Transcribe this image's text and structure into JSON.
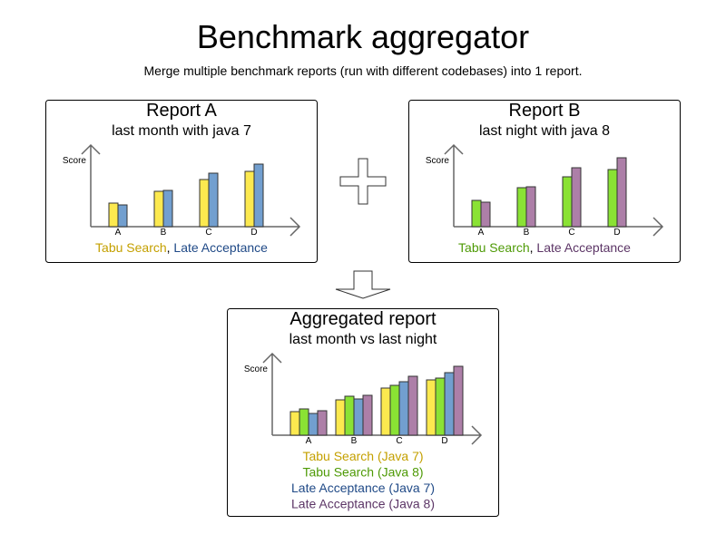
{
  "title": "Benchmark aggregator",
  "subtitle": "Merge multiple benchmark reports (run with different codebases) into 1 report.",
  "colors": {
    "tabu7": {
      "fill": "#fce94f",
      "text": "#c4a000"
    },
    "late7": {
      "fill": "#729fcf",
      "text": "#204a87"
    },
    "tabu8": {
      "fill": "#8ae234",
      "text": "#4e9a06"
    },
    "late8": {
      "fill": "#ad7fa8",
      "text": "#5c3566"
    }
  },
  "reports": {
    "a": {
      "title": "Report A",
      "subtitle": "last month with java 7",
      "ylabel": "Score",
      "categories": [
        "A",
        "B",
        "C",
        "D"
      ],
      "series": [
        {
          "key": "tabu7",
          "values": [
            26,
            39,
            52,
            61
          ]
        },
        {
          "key": "late7",
          "values": [
            24,
            40,
            59,
            69
          ]
        }
      ],
      "legend": [
        {
          "text": "Tabu Search",
          "key": "tabu7"
        },
        {
          "text": ", ",
          "key": null
        },
        {
          "text": "Late Acceptance",
          "key": "late7"
        }
      ]
    },
    "b": {
      "title": "Report B",
      "subtitle": "last night with java 8",
      "ylabel": "Score",
      "categories": [
        "A",
        "B",
        "C",
        "D"
      ],
      "series": [
        {
          "key": "tabu8",
          "values": [
            29,
            43,
            55,
            63
          ]
        },
        {
          "key": "late8",
          "values": [
            27,
            44,
            65,
            76
          ]
        }
      ],
      "legend": [
        {
          "text": "Tabu Search",
          "key": "tabu8"
        },
        {
          "text": ", ",
          "key": null
        },
        {
          "text": "Late Acceptance",
          "key": "late8"
        }
      ]
    },
    "agg": {
      "title": "Aggregated report",
      "subtitle": "last month vs last night",
      "ylabel": "Score",
      "categories": [
        "A",
        "B",
        "C",
        "D"
      ],
      "series": [
        {
          "key": "tabu7",
          "values": [
            26,
            39,
            52,
            61
          ]
        },
        {
          "key": "tabu8",
          "values": [
            29,
            43,
            55,
            63
          ]
        },
        {
          "key": "late7",
          "values": [
            24,
            40,
            59,
            69
          ]
        },
        {
          "key": "late8",
          "values": [
            27,
            44,
            65,
            76
          ]
        }
      ],
      "legend_lines": [
        {
          "text": "Tabu Search (Java 7)",
          "key": "tabu7"
        },
        {
          "text": "Tabu Search (Java 8)",
          "key": "tabu8"
        },
        {
          "text": "Late Acceptance (Java 7)",
          "key": "late7"
        },
        {
          "text": "Late Acceptance (Java 8)",
          "key": "late8"
        }
      ]
    }
  }
}
